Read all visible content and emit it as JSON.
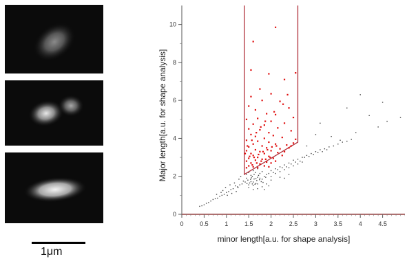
{
  "scale_bar": {
    "label": "1μm"
  },
  "micrographs": [
    {
      "id": "cell-single-ellipse"
    },
    {
      "id": "cell-dividing-two-lobes"
    },
    {
      "id": "cell-elongated-rod"
    }
  ],
  "chart_data": {
    "type": "scatter",
    "title": "",
    "xlabel": "minor length[a.u. for shape analysis]",
    "ylabel": "Major length[a.u. for shape analysis]",
    "xlim": [
      0,
      5
    ],
    "ylim": [
      0,
      11
    ],
    "xticks": [
      "0",
      "0.5",
      "1",
      "1.5",
      "2",
      "2.5",
      "3",
      "3.5",
      "4",
      "4.5"
    ],
    "yticks": [
      "0",
      "2",
      "4",
      "6",
      "8",
      "10"
    ],
    "grid": false,
    "gate_color": "#b0303a",
    "selected_color": "#e01010",
    "background_color": "#444444",
    "gate_polygon": [
      [
        1.4,
        11
      ],
      [
        1.4,
        2.1
      ],
      [
        2.6,
        3.8
      ],
      [
        2.6,
        11
      ]
    ],
    "series": [
      {
        "role": "background",
        "color": "#444444",
        "points": [
          [
            1.62,
            1.86
          ],
          [
            1.55,
            1.72
          ],
          [
            1.7,
            1.95
          ],
          [
            1.48,
            1.8
          ],
          [
            1.66,
            1.62
          ],
          [
            1.75,
            1.9
          ],
          [
            1.58,
            2.0
          ],
          [
            1.8,
            1.85
          ],
          [
            1.52,
            1.65
          ],
          [
            1.68,
            1.78
          ],
          [
            1.6,
            1.7
          ],
          [
            1.72,
            2.05
          ],
          [
            1.45,
            1.9
          ],
          [
            1.85,
            2.0
          ],
          [
            1.64,
            1.58
          ],
          [
            1.5,
            1.55
          ],
          [
            1.78,
            1.72
          ],
          [
            1.56,
            1.92
          ],
          [
            1.9,
            2.1
          ],
          [
            1.42,
            1.7
          ],
          [
            1.7,
            1.6
          ],
          [
            1.62,
            2.1
          ],
          [
            1.82,
            1.68
          ],
          [
            1.58,
            1.6
          ],
          [
            1.95,
            2.15
          ],
          [
            1.38,
            1.75
          ],
          [
            1.66,
            1.88
          ],
          [
            1.74,
            1.82
          ],
          [
            1.54,
            1.84
          ],
          [
            1.6,
            1.52
          ],
          [
            1.88,
            1.95
          ],
          [
            1.46,
            1.62
          ],
          [
            1.35,
            1.6
          ],
          [
            1.3,
            1.55
          ],
          [
            1.25,
            1.45
          ],
          [
            1.2,
            1.5
          ],
          [
            1.15,
            1.35
          ],
          [
            1.1,
            1.3
          ],
          [
            1.05,
            1.2
          ],
          [
            1.0,
            1.15
          ],
          [
            0.95,
            1.05
          ],
          [
            0.9,
            1.0
          ],
          [
            0.85,
            0.95
          ],
          [
            0.8,
            0.85
          ],
          [
            0.75,
            0.82
          ],
          [
            0.7,
            0.78
          ],
          [
            0.65,
            0.7
          ],
          [
            0.6,
            0.62
          ],
          [
            0.55,
            0.58
          ],
          [
            0.5,
            0.5
          ],
          [
            0.45,
            0.45
          ],
          [
            0.4,
            0.42
          ],
          [
            1.28,
            1.85
          ],
          [
            1.18,
            1.65
          ],
          [
            1.08,
            1.55
          ],
          [
            0.98,
            1.4
          ],
          [
            1.22,
            1.2
          ],
          [
            1.12,
            1.1
          ],
          [
            1.02,
            1.0
          ],
          [
            0.92,
            1.25
          ],
          [
            1.32,
            2.0
          ],
          [
            1.26,
            1.4
          ],
          [
            0.88,
            1.15
          ],
          [
            0.78,
            1.05
          ],
          [
            2.0,
            2.3
          ],
          [
            2.1,
            2.4
          ],
          [
            2.2,
            2.5
          ],
          [
            2.3,
            2.6
          ],
          [
            2.4,
            2.7
          ],
          [
            2.5,
            2.85
          ],
          [
            2.6,
            2.9
          ],
          [
            2.7,
            3.0
          ],
          [
            2.8,
            3.1
          ],
          [
            2.9,
            3.2
          ],
          [
            3.0,
            3.3
          ],
          [
            3.1,
            3.4
          ],
          [
            3.2,
            3.45
          ],
          [
            3.3,
            3.55
          ],
          [
            3.4,
            3.6
          ],
          [
            3.5,
            3.7
          ],
          [
            3.6,
            3.8
          ],
          [
            3.7,
            3.85
          ],
          [
            3.8,
            3.95
          ],
          [
            2.05,
            2.2
          ],
          [
            2.15,
            2.35
          ],
          [
            2.25,
            2.45
          ],
          [
            2.35,
            2.5
          ],
          [
            2.45,
            2.65
          ],
          [
            2.55,
            2.75
          ],
          [
            2.65,
            2.8
          ],
          [
            2.75,
            3.0
          ],
          [
            2.85,
            3.05
          ],
          [
            2.95,
            3.15
          ],
          [
            3.05,
            3.25
          ],
          [
            3.15,
            3.3
          ],
          [
            3.25,
            3.4
          ],
          [
            2.0,
            2.0
          ],
          [
            2.1,
            2.15
          ],
          [
            2.2,
            2.25
          ],
          [
            2.3,
            2.35
          ],
          [
            2.4,
            2.45
          ],
          [
            2.5,
            2.55
          ],
          [
            2.6,
            2.65
          ],
          [
            2.7,
            2.75
          ],
          [
            3.35,
            4.1
          ],
          [
            3.55,
            3.9
          ],
          [
            3.0,
            4.2
          ],
          [
            2.8,
            3.6
          ],
          [
            3.9,
            4.3
          ],
          [
            4.4,
            4.6
          ],
          [
            4.6,
            4.9
          ],
          [
            4.9,
            5.1
          ],
          [
            1.7,
            1.35
          ],
          [
            1.6,
            1.3
          ],
          [
            1.5,
            1.4
          ],
          [
            1.8,
            1.45
          ],
          [
            1.9,
            1.6
          ],
          [
            2.0,
            1.8
          ],
          [
            1.85,
            1.3
          ],
          [
            1.95,
            1.5
          ],
          [
            1.6,
            2.3
          ],
          [
            1.7,
            2.4
          ],
          [
            1.5,
            2.2
          ],
          [
            1.8,
            2.25
          ],
          [
            1.75,
            2.15
          ],
          [
            1.65,
            2.2
          ],
          [
            1.55,
            2.05
          ],
          [
            1.45,
            2.1
          ],
          [
            4.0,
            6.3
          ],
          [
            4.5,
            5.9
          ],
          [
            3.7,
            5.6
          ],
          [
            3.1,
            4.8
          ],
          [
            4.2,
            5.2
          ],
          [
            2.3,
            1.9
          ],
          [
            2.4,
            2.1
          ],
          [
            2.2,
            1.95
          ]
        ]
      },
      {
        "role": "selected",
        "color": "#e01010",
        "points": [
          [
            2.1,
            9.85
          ],
          [
            1.6,
            9.1
          ],
          [
            1.95,
            7.4
          ],
          [
            1.55,
            7.6
          ],
          [
            2.55,
            7.45
          ],
          [
            2.3,
            7.1
          ],
          [
            1.75,
            6.6
          ],
          [
            2.0,
            6.35
          ],
          [
            1.55,
            6.2
          ],
          [
            1.8,
            6.0
          ],
          [
            2.2,
            5.95
          ],
          [
            1.5,
            5.7
          ],
          [
            1.65,
            5.5
          ],
          [
            2.4,
            5.6
          ],
          [
            1.9,
            5.3
          ],
          [
            2.1,
            5.25
          ],
          [
            1.45,
            5.0
          ],
          [
            1.7,
            5.05
          ],
          [
            2.5,
            5.1
          ],
          [
            2.0,
            4.9
          ],
          [
            1.6,
            4.75
          ],
          [
            1.85,
            4.7
          ],
          [
            2.3,
            4.8
          ],
          [
            1.5,
            4.5
          ],
          [
            2.15,
            4.55
          ],
          [
            1.75,
            4.45
          ],
          [
            1.95,
            4.3
          ],
          [
            2.45,
            4.4
          ],
          [
            1.55,
            4.2
          ],
          [
            1.65,
            4.1
          ],
          [
            2.05,
            4.15
          ],
          [
            1.85,
            4.0
          ],
          [
            2.25,
            4.05
          ],
          [
            1.45,
            3.9
          ],
          [
            1.7,
            3.85
          ],
          [
            2.55,
            3.95
          ],
          [
            1.95,
            3.8
          ],
          [
            1.6,
            3.7
          ],
          [
            2.1,
            3.7
          ],
          [
            1.8,
            3.6
          ],
          [
            2.35,
            3.65
          ],
          [
            1.5,
            3.55
          ],
          [
            1.9,
            3.5
          ],
          [
            2.2,
            3.45
          ],
          [
            1.65,
            3.4
          ],
          [
            1.45,
            3.35
          ],
          [
            2.0,
            3.35
          ],
          [
            1.75,
            3.3
          ],
          [
            2.4,
            3.5
          ],
          [
            1.55,
            3.2
          ],
          [
            1.85,
            3.2
          ],
          [
            2.15,
            3.25
          ],
          [
            1.6,
            3.1
          ],
          [
            1.95,
            3.05
          ],
          [
            1.7,
            3.0
          ],
          [
            1.5,
            2.95
          ],
          [
            2.05,
            2.95
          ],
          [
            1.8,
            2.9
          ],
          [
            1.45,
            2.8
          ],
          [
            1.65,
            2.85
          ],
          [
            1.9,
            2.75
          ],
          [
            1.55,
            2.7
          ],
          [
            1.75,
            2.65
          ],
          [
            2.0,
            2.7
          ],
          [
            1.5,
            2.55
          ],
          [
            1.6,
            2.5
          ],
          [
            1.7,
            2.45
          ],
          [
            1.85,
            2.55
          ],
          [
            1.45,
            2.45
          ],
          [
            1.95,
            2.5
          ],
          [
            2.1,
            2.8
          ],
          [
            2.25,
            3.1
          ],
          [
            2.3,
            3.3
          ],
          [
            2.45,
            3.6
          ],
          [
            2.5,
            3.75
          ],
          [
            1.62,
            3.0
          ],
          [
            1.72,
            3.15
          ],
          [
            1.82,
            3.3
          ],
          [
            1.92,
            3.4
          ],
          [
            2.02,
            3.55
          ],
          [
            2.12,
            3.6
          ],
          [
            1.58,
            2.6
          ],
          [
            1.68,
            2.7
          ],
          [
            1.78,
            2.8
          ],
          [
            1.88,
            2.9
          ],
          [
            1.98,
            3.0
          ],
          [
            1.52,
            3.05
          ],
          [
            1.42,
            3.2
          ],
          [
            1.47,
            3.6
          ],
          [
            1.57,
            3.9
          ],
          [
            1.67,
            4.3
          ],
          [
            1.77,
            4.6
          ],
          [
            1.87,
            4.9
          ],
          [
            2.07,
            5.4
          ],
          [
            2.27,
            5.8
          ],
          [
            2.37,
            6.3
          ]
        ]
      }
    ]
  }
}
